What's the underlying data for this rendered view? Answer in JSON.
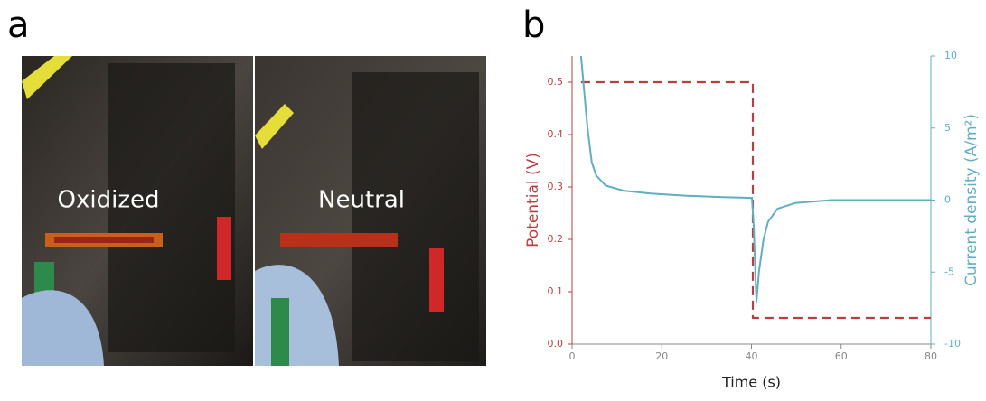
{
  "panels": {
    "a": {
      "label": "a",
      "photos": [
        {
          "label": "Oxidized"
        },
        {
          "label": "Neutral"
        }
      ]
    },
    "b": {
      "label": "b"
    }
  },
  "chart_data": {
    "type": "line",
    "x_label": "Time (s)",
    "y_label": "Potential (V)",
    "y2_label": "Current density (A/m²)",
    "xlim": [
      0,
      80
    ],
    "xticks": [
      0,
      20,
      40,
      60,
      80
    ],
    "ylim": [
      0,
      0.55
    ],
    "yticks": [
      0.0,
      0.1,
      0.2,
      0.3,
      0.4,
      0.5
    ],
    "y2lim": [
      -10,
      10
    ],
    "y2ticks": [
      -10,
      -5,
      0,
      5,
      10
    ],
    "series": [
      {
        "name": "Potential (V)",
        "color": "#b5403f",
        "linestyle": "dashed",
        "x": [
          2,
          40.3,
          40.3,
          80
        ],
        "values": [
          0.5,
          0.5,
          0.05,
          0.05
        ]
      },
      {
        "name": "Current density (A/m²)",
        "color": "#62aebf",
        "axis": "y2",
        "linestyle": "solid",
        "x": [
          2,
          3.4,
          4.4,
          5.4,
          7.5,
          11.5,
          17.5,
          25.6,
          33.7,
          40.1,
          40.5,
          41.1,
          41.7,
          42.7,
          43.7,
          45.8,
          49.8,
          57.8,
          80
        ],
        "values": [
          10,
          5.1,
          2.6,
          1.7,
          1.0,
          0.65,
          0.45,
          0.3,
          0.2,
          0.15,
          -1.8,
          -7.1,
          -4.9,
          -2.7,
          -1.5,
          -0.6,
          -0.2,
          0,
          0
        ]
      }
    ]
  }
}
